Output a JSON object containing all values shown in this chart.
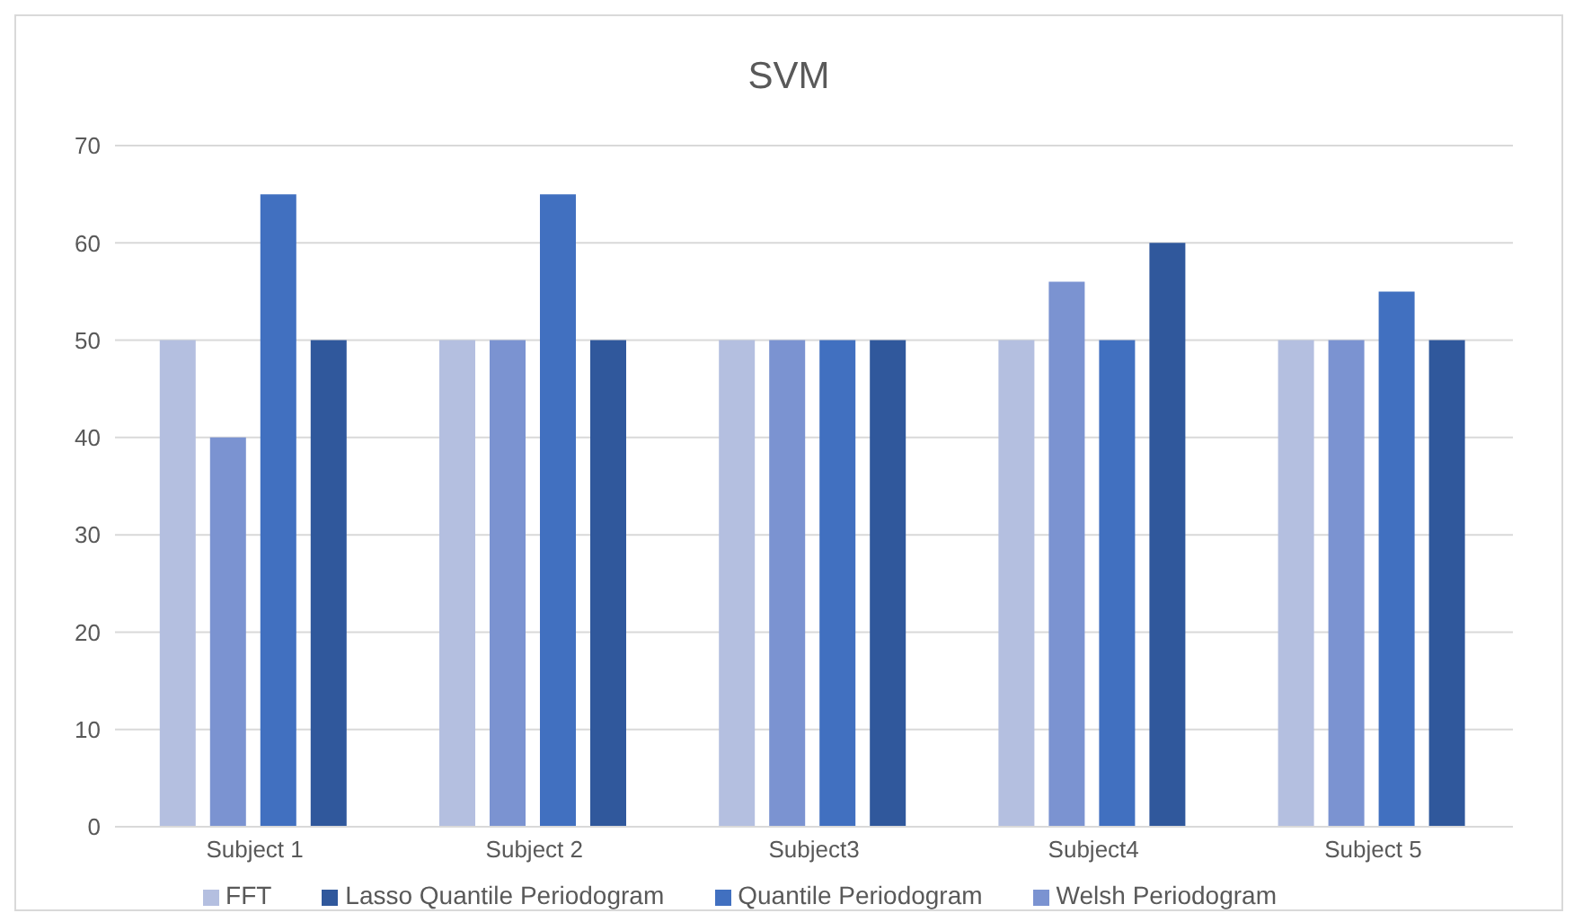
{
  "chart_data": {
    "type": "bar",
    "title": "SVM",
    "categories": [
      "Subject 1",
      "Subject 2",
      "Subject3",
      "Subject4",
      "Subject 5"
    ],
    "series": [
      {
        "name": "FFT",
        "color": "#b4bfe0",
        "values": [
          50,
          50,
          50,
          50,
          50
        ]
      },
      {
        "name": "Welsh Periodogram",
        "color": "#7b93d1",
        "values": [
          40,
          50,
          50,
          56,
          50
        ]
      },
      {
        "name": "Quantile Periodogram",
        "color": "#4170c0",
        "values": [
          65,
          65,
          50,
          50,
          55
        ]
      },
      {
        "name": "Lasso Quantile Periodogram",
        "color": "#30589c",
        "values": [
          50,
          50,
          50,
          60,
          50
        ]
      }
    ],
    "ylim": [
      0,
      70
    ],
    "yticks": [
      0,
      10,
      20,
      30,
      40,
      50,
      60,
      70
    ],
    "grid": "y",
    "legend": "bottom"
  }
}
